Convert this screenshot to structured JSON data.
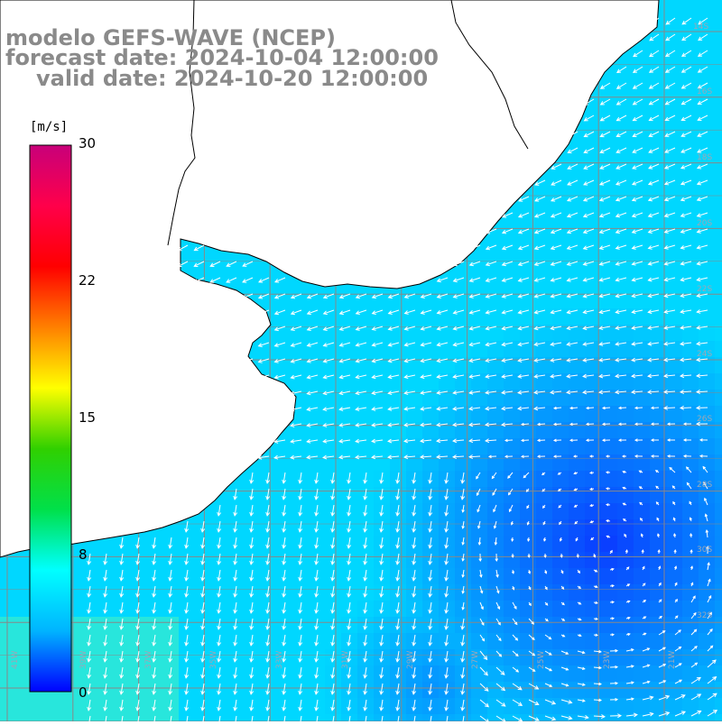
{
  "title": {
    "line1": "modelo GEFS-WAVE (NCEP)",
    "line2": "forecast date: 2024-10-04 12:00:00",
    "line3": "valid date: 2024-10-20 12:00:00"
  },
  "colorbar": {
    "unit": "[m/s]",
    "ticks": [
      "30",
      "22",
      "15",
      "8",
      "0"
    ],
    "tick_values": [
      30,
      22,
      15,
      8,
      0
    ],
    "range": [
      0,
      30
    ],
    "colors": [
      "#0000ff",
      "#00b4ff",
      "#00ffff",
      "#00e04a",
      "#30d000",
      "#ffff00",
      "#ff8000",
      "#ff0000",
      "#ff004a",
      "#c8007a"
    ]
  },
  "map": {
    "variable": "wind speed and direction",
    "land_color": "#ffffff",
    "grid_color": "#888888",
    "coast_color": "#000000",
    "lat_labels": [
      "14S",
      "16S",
      "18S",
      "20S",
      "22S",
      "24S",
      "26S",
      "28S",
      "30S",
      "32S"
    ],
    "lon_labels": [
      "41W",
      "39W",
      "37W",
      "35W",
      "33W",
      "31W",
      "29W",
      "27W",
      "25W",
      "23W",
      "21W"
    ]
  }
}
